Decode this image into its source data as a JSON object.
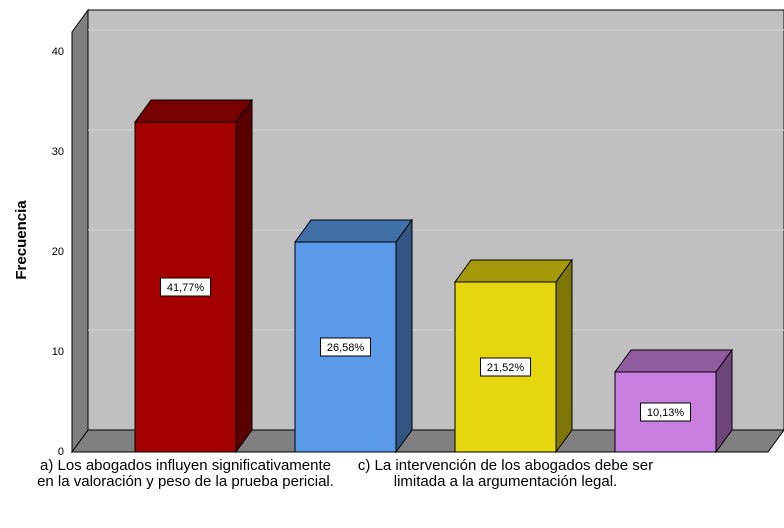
{
  "chart_data": {
    "type": "bar3d",
    "y_label": "Frecuencia",
    "categories": [
      "a) Los abogados influyen significativamente en la valoración y peso de la prueba pericial.",
      null,
      "c) La intervención de los abogados debe ser limitada a la argumentación legal.",
      null
    ],
    "values": [
      33,
      21,
      17,
      8
    ],
    "colors": [
      "#a50000",
      "#5a9aea",
      "#e6d60e",
      "#c97fe0"
    ],
    "percentages": [
      41.77,
      26.58,
      21.52,
      10.13
    ],
    "percentage_labels": [
      "41,77%",
      "26,58%",
      "21,52%",
      "10,13%"
    ],
    "ylim": [
      0,
      42
    ],
    "yticks": [
      0,
      10,
      20,
      30,
      40
    ],
    "grid": true
  }
}
